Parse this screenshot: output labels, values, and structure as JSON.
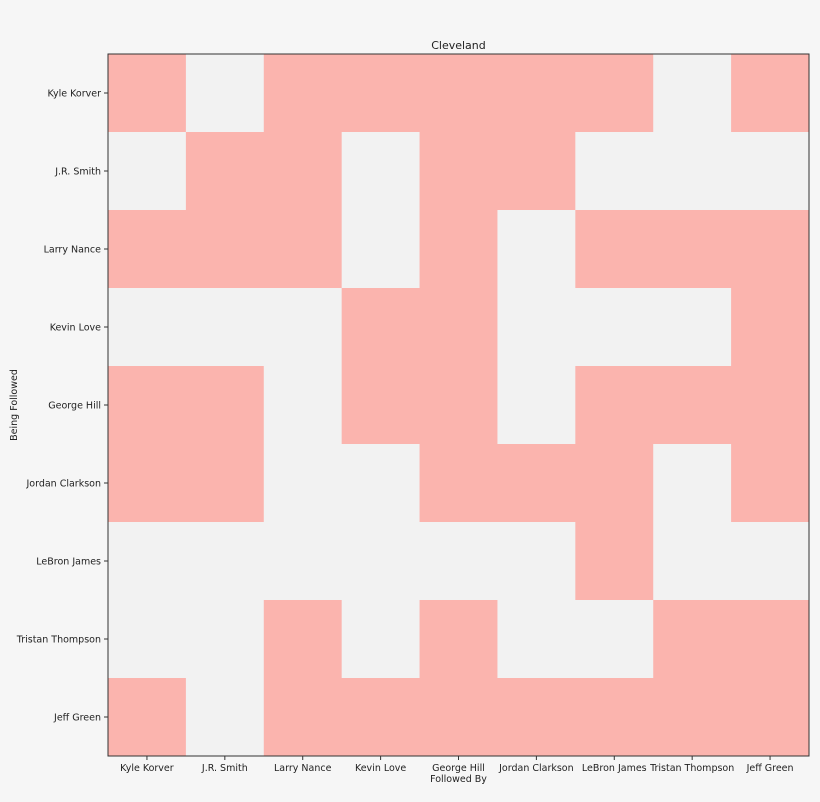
{
  "chart_data": {
    "type": "heatmap",
    "title": "Cleveland",
    "xlabel": "Followed By",
    "ylabel": "Being Followed",
    "x_categories": [
      "Kyle Korver",
      "J.R. Smith",
      "Larry Nance",
      "Kevin Love",
      "George Hill",
      "Jordan Clarkson",
      "LeBron James",
      "Tristan Thompson",
      "Jeff Green"
    ],
    "y_categories": [
      "Kyle Korver",
      "J.R. Smith",
      "Larry Nance",
      "Kevin Love",
      "George Hill",
      "Jordan Clarkson",
      "LeBron James",
      "Tristan Thompson",
      "Jeff Green"
    ],
    "values": [
      [
        1,
        0,
        1,
        1,
        1,
        1,
        1,
        0,
        1
      ],
      [
        0,
        1,
        1,
        0,
        1,
        1,
        0,
        0,
        0
      ],
      [
        1,
        1,
        1,
        0,
        1,
        0,
        1,
        1,
        1
      ],
      [
        0,
        0,
        0,
        1,
        1,
        0,
        0,
        0,
        1
      ],
      [
        1,
        1,
        0,
        1,
        1,
        0,
        1,
        1,
        1
      ],
      [
        1,
        1,
        0,
        0,
        1,
        1,
        1,
        0,
        1
      ],
      [
        0,
        0,
        0,
        0,
        0,
        0,
        1,
        0,
        0
      ],
      [
        0,
        0,
        1,
        0,
        1,
        0,
        0,
        1,
        1
      ],
      [
        1,
        0,
        1,
        1,
        1,
        1,
        1,
        1,
        1
      ]
    ],
    "colors": {
      "on": "#fbb4ae",
      "off": "#f2f2f2",
      "frame": "#333333"
    },
    "grid": false
  }
}
